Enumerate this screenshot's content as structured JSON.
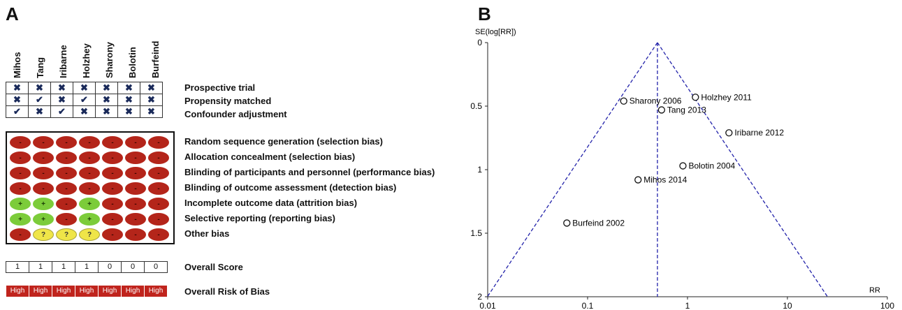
{
  "panel_a": {
    "label": "A",
    "studies": [
      "Mihos",
      "Tang",
      "Iribarne",
      "Holzhey",
      "Sharony",
      "Bolotin",
      "Burfeind"
    ],
    "design_rows": [
      {
        "label": "Prospective trial",
        "marks": [
          "✖",
          "✖",
          "✖",
          "✖",
          "✖",
          "✖",
          "✖"
        ]
      },
      {
        "label": "Propensity matched",
        "marks": [
          "✖",
          "✔",
          "✖",
          "✔",
          "✖",
          "✖",
          "✖"
        ]
      },
      {
        "label": "Confounder adjustment",
        "marks": [
          "✔",
          "✖",
          "✔",
          "✖",
          "✖",
          "✖",
          "✖"
        ]
      }
    ],
    "bias_rows": [
      {
        "label": "Random sequence generation (selection bias)",
        "ratings": [
          "high",
          "high",
          "high",
          "high",
          "high",
          "high",
          "high"
        ]
      },
      {
        "label": "Allocation concealment (selection bias)",
        "ratings": [
          "high",
          "high",
          "high",
          "high",
          "high",
          "high",
          "high"
        ]
      },
      {
        "label": "Blinding of participants and personnel (performance bias)",
        "ratings": [
          "high",
          "high",
          "high",
          "high",
          "high",
          "high",
          "high"
        ]
      },
      {
        "label": "Blinding of outcome assessment (detection bias)",
        "ratings": [
          "high",
          "high",
          "high",
          "high",
          "high",
          "high",
          "high"
        ]
      },
      {
        "label": "Incomplete outcome data (attrition bias)",
        "ratings": [
          "low",
          "low",
          "high",
          "low",
          "high",
          "high",
          "high"
        ]
      },
      {
        "label": "Selective reporting (reporting bias)",
        "ratings": [
          "low",
          "low",
          "high",
          "low",
          "high",
          "high",
          "high"
        ]
      },
      {
        "label": "Other bias",
        "ratings": [
          "high",
          "unclear",
          "unclear",
          "unclear",
          "high",
          "high",
          "high"
        ]
      }
    ],
    "rating_symbols": {
      "high": "-",
      "low": "+",
      "unclear": "?"
    },
    "rating_colors": {
      "high": "#b4251a",
      "low": "#7ccc3a",
      "unclear": "#efe548"
    },
    "overall_score": {
      "label": "Overall Score",
      "values": [
        "1",
        "1",
        "1",
        "1",
        "0",
        "0",
        "0"
      ]
    },
    "overall_risk": {
      "label": "Overall Risk of Bias",
      "values": [
        "High",
        "High",
        "High",
        "High",
        "High",
        "High",
        "High"
      ]
    }
  },
  "chart_data": {
    "label": "B",
    "type": "scatter",
    "x_scale": "log",
    "xlabel": "RR",
    "ylabel": "SE(log[RR])",
    "xlim": [
      0.01,
      100
    ],
    "ylim": [
      2,
      0
    ],
    "x_ticks": [
      "0.01",
      "0.1",
      "1",
      "10",
      "100"
    ],
    "y_ticks": [
      "0",
      "0.5",
      "1",
      "1.5",
      "2"
    ],
    "pooled_rr": 0.5,
    "funnel_color": "#2222aa",
    "points": [
      {
        "name": "Holzhey 2011",
        "x": 1.2,
        "y": 0.43
      },
      {
        "name": "Sharony 2006",
        "x": 0.23,
        "y": 0.46
      },
      {
        "name": "Tang 2013",
        "x": 0.55,
        "y": 0.53
      },
      {
        "name": "Iribarne 2012",
        "x": 2.6,
        "y": 0.71
      },
      {
        "name": "Bolotin 2004",
        "x": 0.9,
        "y": 0.97
      },
      {
        "name": "Mihos 2014",
        "x": 0.32,
        "y": 1.08
      },
      {
        "name": "Burfeind 2002",
        "x": 0.062,
        "y": 1.42
      }
    ]
  }
}
